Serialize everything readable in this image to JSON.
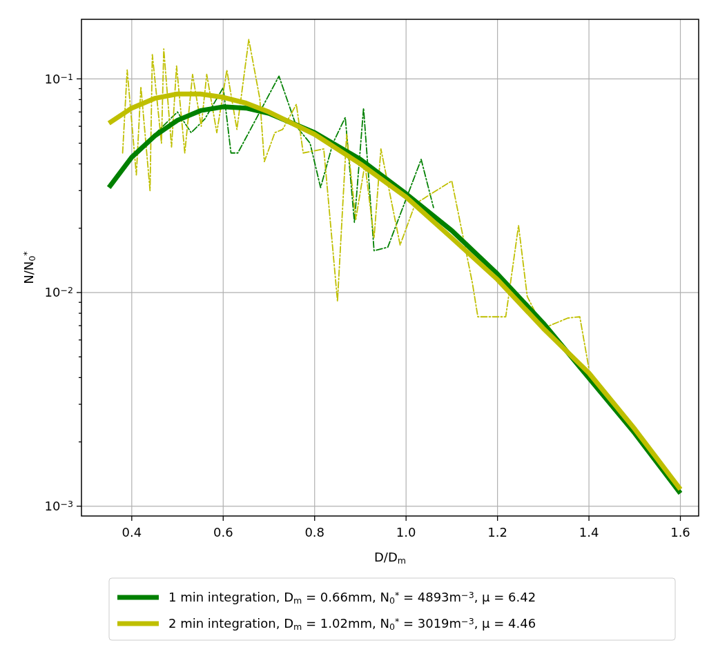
{
  "chart_data": {
    "type": "line",
    "xlabel": "D/D$_{m}$",
    "ylabel": "N/N$_{0}$$^{*}$",
    "log": "y",
    "grid": true,
    "legend": "bottom",
    "xlim": [
      0.29,
      1.64
    ],
    "xticks": [
      {
        "value": 0.4,
        "label": "0.4"
      },
      {
        "value": 0.6,
        "label": "0.6"
      },
      {
        "value": 0.8,
        "label": "0.8"
      },
      {
        "value": 1.0,
        "label": "1.0"
      },
      {
        "value": 1.2,
        "label": "1.2"
      },
      {
        "value": 1.4,
        "label": "1.4"
      },
      {
        "value": 1.6,
        "label": "1.6"
      }
    ],
    "ylim": [
      0.0009,
      0.19
    ],
    "yticks": [
      {
        "value": 0.001,
        "label": "10$^{−3}$"
      },
      {
        "value": 0.002,
        "label": null
      },
      {
        "value": 0.003,
        "label": null
      },
      {
        "value": 0.004,
        "label": null
      },
      {
        "value": 0.005,
        "label": null
      },
      {
        "value": 0.006,
        "label": null
      },
      {
        "value": 0.007,
        "label": null
      },
      {
        "value": 0.008,
        "label": null
      },
      {
        "value": 0.009,
        "label": null
      },
      {
        "value": 0.01,
        "label": "10$^{−2}$"
      },
      {
        "value": 0.02,
        "label": null
      },
      {
        "value": 0.03,
        "label": null
      },
      {
        "value": 0.04,
        "label": null
      },
      {
        "value": 0.05,
        "label": null
      },
      {
        "value": 0.06,
        "label": null
      },
      {
        "value": 0.07,
        "label": null
      },
      {
        "value": 0.08,
        "label": null
      },
      {
        "value": 0.09,
        "label": null
      },
      {
        "value": 0.1,
        "label": "10$^{−1}$"
      }
    ],
    "series": [
      {
        "color": "#008000",
        "line_style": "dashed",
        "x": [
          0.45,
          0.5,
          0.53,
          0.56,
          0.6,
          0.617,
          0.632,
          0.68,
          0.722,
          0.76,
          0.79,
          0.813,
          0.84,
          0.867,
          0.887,
          0.907,
          0.93,
          0.96,
          1.033,
          1.06
        ],
        "values": [
          0.055,
          0.07,
          0.056,
          0.065,
          0.091,
          0.045,
          0.045,
          0.07,
          0.103,
          0.06,
          0.05,
          0.031,
          0.05,
          0.066,
          0.0213,
          0.073,
          0.0157,
          0.0163,
          0.042,
          0.025
        ]
      },
      {
        "color": "#bfbf00",
        "line_style": "dashed",
        "x": [
          0.38,
          0.39,
          0.41,
          0.42,
          0.44,
          0.445,
          0.465,
          0.47,
          0.487,
          0.498,
          0.516,
          0.533,
          0.552,
          0.564,
          0.586,
          0.608,
          0.63,
          0.656,
          0.68,
          0.69,
          0.713,
          0.73,
          0.76,
          0.775,
          0.82,
          0.85,
          0.87,
          0.89,
          0.91,
          0.93,
          0.945,
          0.987,
          1.02,
          1.1,
          1.145,
          1.157,
          1.218,
          1.246,
          1.265,
          1.3,
          1.354,
          1.38,
          1.4
        ],
        "values": [
          0.045,
          0.11,
          0.0355,
          0.092,
          0.03,
          0.13,
          0.05,
          0.138,
          0.048,
          0.115,
          0.045,
          0.105,
          0.06,
          0.105,
          0.056,
          0.11,
          0.058,
          0.153,
          0.081,
          0.041,
          0.056,
          0.058,
          0.076,
          0.045,
          0.047,
          0.0091,
          0.055,
          0.022,
          0.04,
          0.018,
          0.047,
          0.0167,
          0.026,
          0.0333,
          0.0111,
          0.0077,
          0.0077,
          0.0206,
          0.0096,
          0.0068,
          0.0076,
          0.0077,
          0.0044
        ]
      },
      {
        "name": "1 min integration, D$_{m}$ = 0.66mm, N$_{0}$$^{*}$ = 4893m$^{−3}$, μ = 6.42",
        "color": "#008000",
        "line_style": "solid",
        "x": [
          0.35,
          0.4,
          0.45,
          0.5,
          0.55,
          0.6,
          0.65,
          0.7,
          0.8,
          0.9,
          1.0,
          1.1,
          1.2,
          1.3,
          1.5,
          1.6
        ],
        "values": [
          0.031,
          0.043,
          0.054,
          0.064,
          0.071,
          0.074,
          0.073,
          0.069,
          0.056,
          0.042,
          0.029,
          0.0195,
          0.0122,
          0.0072,
          0.0022,
          0.00115
        ]
      },
      {
        "name": "2 min integration, D$_{m}$ = 1.02mm, N$_{0}$$^{*}$ = 3019m$^{−3}$, μ = 4.46",
        "color": "#bfbf00",
        "line_style": "solid",
        "x": [
          0.35,
          0.4,
          0.45,
          0.5,
          0.55,
          0.6,
          0.65,
          0.7,
          0.8,
          0.9,
          1.0,
          1.1,
          1.2,
          1.3,
          1.4,
          1.5,
          1.6
        ],
        "values": [
          0.062,
          0.073,
          0.081,
          0.085,
          0.085,
          0.082,
          0.077,
          0.07,
          0.055,
          0.04,
          0.028,
          0.018,
          0.0115,
          0.0068,
          0.0042,
          0.0023,
          0.0012
        ]
      }
    ]
  }
}
